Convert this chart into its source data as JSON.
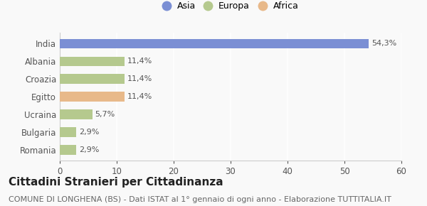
{
  "categories": [
    "Romania",
    "Bulgaria",
    "Ucraina",
    "Egitto",
    "Croazia",
    "Albania",
    "India"
  ],
  "values": [
    2.9,
    2.9,
    5.7,
    11.4,
    11.4,
    11.4,
    54.3
  ],
  "labels": [
    "2,9%",
    "2,9%",
    "5,7%",
    "11,4%",
    "11,4%",
    "11,4%",
    "54,3%"
  ],
  "colors": [
    "#b5c98e",
    "#b5c98e",
    "#b5c98e",
    "#e8b98a",
    "#b5c98e",
    "#b5c98e",
    "#7b8fd4"
  ],
  "legend_labels": [
    "Asia",
    "Europa",
    "Africa"
  ],
  "legend_colors": [
    "#7b8fd4",
    "#b5c98e",
    "#e8b98a"
  ],
  "xlim": [
    0,
    60
  ],
  "xticks": [
    0,
    10,
    20,
    30,
    40,
    50,
    60
  ],
  "title": "Cittadini Stranieri per Cittadinanza",
  "subtitle": "COMUNE DI LONGHENA (BS) - Dati ISTAT al 1° gennaio di ogni anno - Elaborazione TUTTITALIA.IT",
  "bar_height": 0.55,
  "background_color": "#f9f9f9",
  "grid_color": "#ffffff",
  "title_fontsize": 11,
  "subtitle_fontsize": 8,
  "label_fontsize": 8,
  "tick_fontsize": 8.5,
  "legend_fontsize": 9
}
